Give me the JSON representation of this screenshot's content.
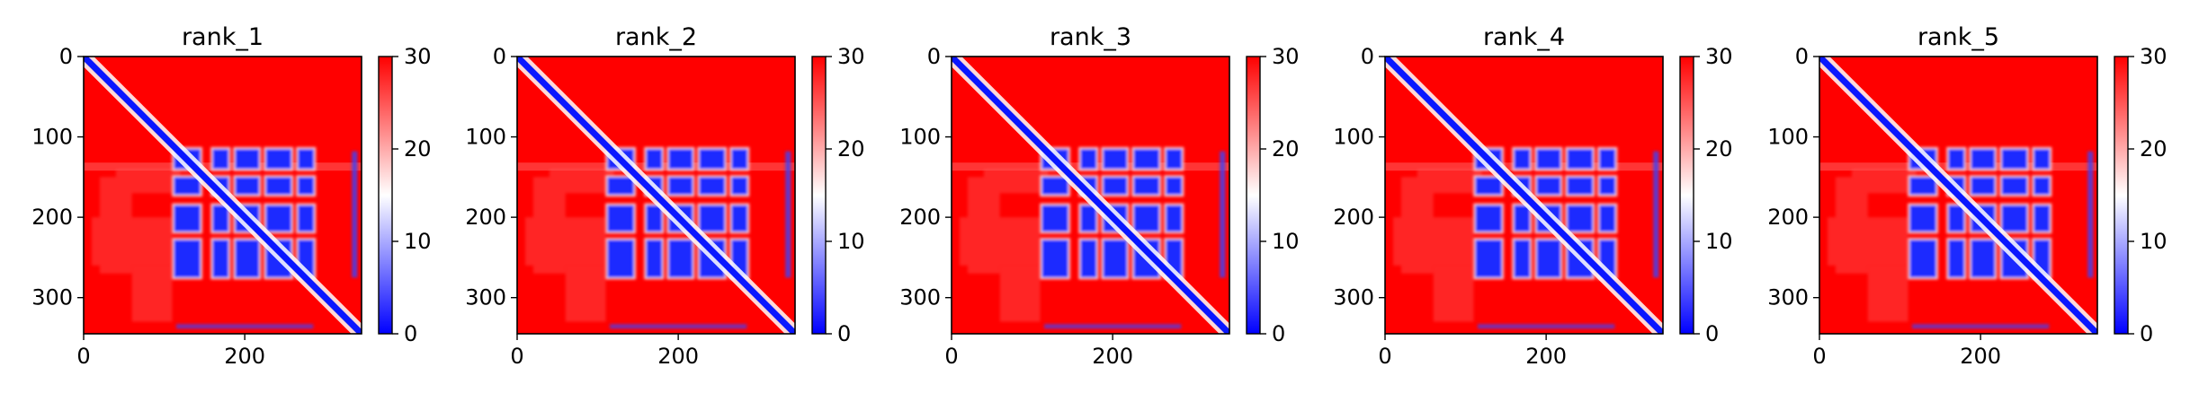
{
  "chart_data": [
    {
      "type": "heatmap",
      "title": "rank_1",
      "xlim": [
        0,
        345
      ],
      "ylim": [
        345,
        0
      ],
      "x_ticks": [
        0,
        200
      ],
      "y_ticks": [
        0,
        100,
        200,
        300
      ],
      "colorbar": {
        "min": 0,
        "max": 30,
        "ticks": [
          0,
          10,
          20,
          30
        ],
        "colormap": "bwr"
      },
      "approx_values": {
        "diagonal": 0,
        "domain_block_rows": [
          118,
          282
        ],
        "domain_block_value": 3,
        "background_value": 30
      }
    },
    {
      "type": "heatmap",
      "title": "rank_2",
      "xlim": [
        0,
        345
      ],
      "ylim": [
        345,
        0
      ],
      "x_ticks": [
        0,
        200
      ],
      "y_ticks": [
        0,
        100,
        200,
        300
      ],
      "colorbar": {
        "min": 0,
        "max": 30,
        "ticks": [
          0,
          10,
          20,
          30
        ],
        "colormap": "bwr"
      },
      "approx_values": {
        "diagonal": 0,
        "domain_block_rows": [
          118,
          282
        ],
        "domain_block_value": 3,
        "background_value": 30
      }
    },
    {
      "type": "heatmap",
      "title": "rank_3",
      "xlim": [
        0,
        345
      ],
      "ylim": [
        345,
        0
      ],
      "x_ticks": [
        0,
        200
      ],
      "y_ticks": [
        0,
        100,
        200,
        300
      ],
      "colorbar": {
        "min": 0,
        "max": 30,
        "ticks": [
          0,
          10,
          20,
          30
        ],
        "colormap": "bwr"
      },
      "approx_values": {
        "diagonal": 0,
        "domain_block_rows": [
          118,
          282
        ],
        "domain_block_value": 3,
        "background_value": 30
      }
    },
    {
      "type": "heatmap",
      "title": "rank_4",
      "xlim": [
        0,
        345
      ],
      "ylim": [
        345,
        0
      ],
      "x_ticks": [
        0,
        200
      ],
      "y_ticks": [
        0,
        100,
        200,
        300
      ],
      "colorbar": {
        "min": 0,
        "max": 30,
        "ticks": [
          0,
          10,
          20,
          30
        ],
        "colormap": "bwr"
      },
      "approx_values": {
        "diagonal": 0,
        "domain_block_rows": [
          118,
          282
        ],
        "domain_block_value": 3,
        "background_value": 30
      }
    },
    {
      "type": "heatmap",
      "title": "rank_5",
      "xlim": [
        0,
        345
      ],
      "ylim": [
        345,
        0
      ],
      "x_ticks": [
        0,
        200
      ],
      "y_ticks": [
        0,
        100,
        200,
        300
      ],
      "colorbar": {
        "min": 0,
        "max": 30,
        "ticks": [
          0,
          10,
          20,
          30
        ],
        "colormap": "bwr"
      },
      "approx_values": {
        "diagonal": 0,
        "domain_block_rows": [
          118,
          282
        ],
        "domain_block_value": 3,
        "background_value": 30
      }
    }
  ]
}
